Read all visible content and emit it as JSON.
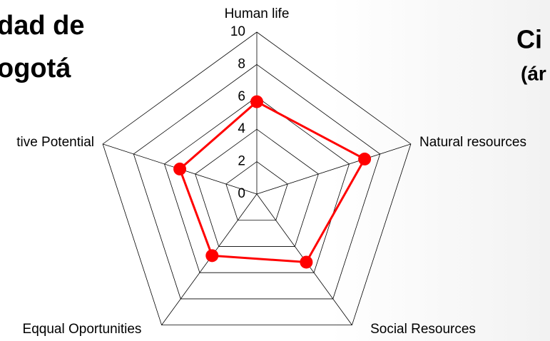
{
  "slide_texts": {
    "left_line1": "dad de",
    "left_line2": "ogotá",
    "right_line1": "Ci",
    "right_line2": "(ár"
  },
  "chart_data": {
    "type": "radar",
    "categories": [
      "Human life",
      "Natural resources",
      "Social Resources",
      "Eqqual Oportunities",
      "tive Potential"
    ],
    "values": [
      5.7,
      7,
      5.2,
      4.7,
      5
    ],
    "color": "#ff0000",
    "ylim": [
      0,
      10
    ],
    "yticks": [
      0,
      2,
      4,
      6,
      8,
      10
    ],
    "grid": true
  }
}
